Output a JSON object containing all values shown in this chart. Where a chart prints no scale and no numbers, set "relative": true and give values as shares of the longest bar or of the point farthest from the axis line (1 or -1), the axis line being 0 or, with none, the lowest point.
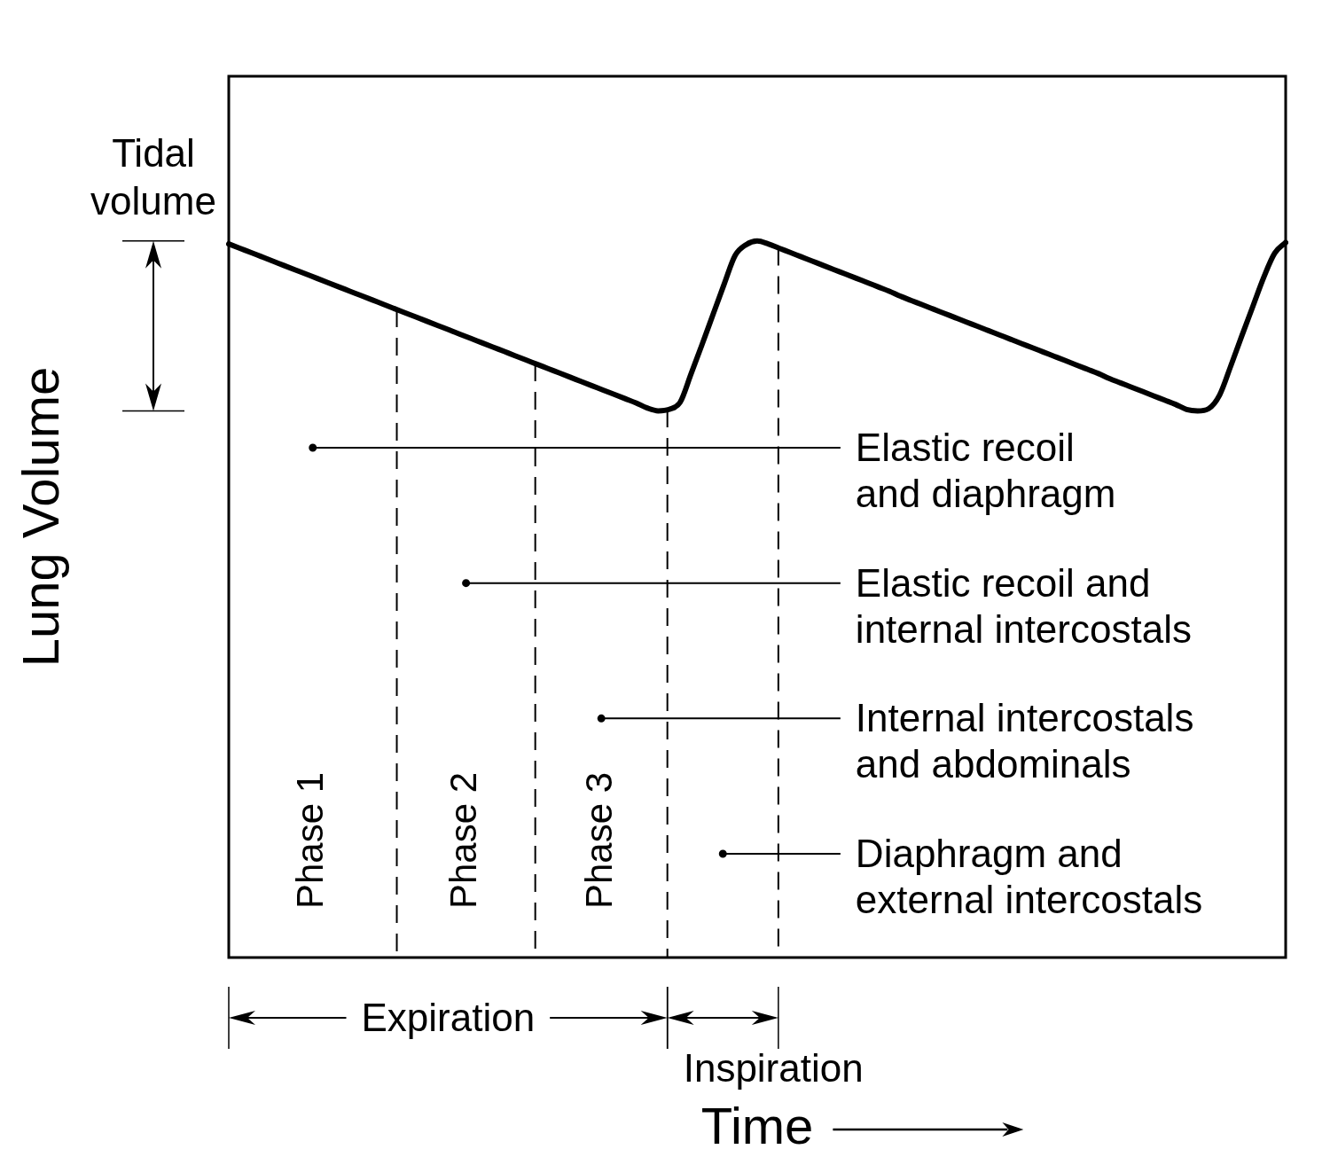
{
  "chart_data": {
    "type": "line",
    "xlabel": "Time",
    "ylabel": "Lung Volume",
    "relative": true,
    "categories": [
      null,
      null,
      null,
      null,
      null,
      null,
      null,
      null,
      null,
      null,
      null,
      null,
      null,
      null,
      null,
      null,
      null,
      null,
      null,
      null,
      null,
      null,
      null,
      null,
      null,
      null,
      null,
      null,
      null,
      null,
      null,
      null,
      null,
      null,
      null,
      null,
      null,
      null,
      null,
      null,
      null,
      null,
      null,
      null,
      null,
      null,
      null,
      null,
      null,
      null,
      null,
      null,
      null,
      null,
      null,
      null,
      null,
      null,
      null,
      null,
      null,
      null,
      null,
      null,
      null,
      null,
      null,
      null,
      null,
      null,
      null,
      null,
      null,
      null,
      null,
      null,
      null,
      null,
      null,
      null,
      null,
      null,
      null,
      null,
      null,
      null,
      null,
      null,
      null,
      null,
      null,
      null,
      null,
      null,
      null,
      null,
      null
    ],
    "values": [
      0.996,
      0.99,
      0.984,
      0.978,
      0.972,
      0.966,
      0.96,
      0.954,
      0.948,
      0.942,
      0.936,
      0.93,
      0.924,
      0.918,
      0.912,
      0.906,
      0.9,
      0.894,
      0.888,
      0.882,
      0.876,
      0.87,
      0.864,
      0.858,
      0.852,
      0.846,
      0.84,
      0.834,
      0.828,
      0.822,
      0.816,
      0.81,
      0.804,
      0.798,
      0.792,
      0.786,
      0.78,
      0.774,
      0.767,
      0.763,
      0.765,
      0.775,
      0.815,
      0.856,
      0.898,
      0.94,
      0.98,
      0.995,
      1,
      0.996,
      0.99,
      0.984,
      0.978,
      0.972,
      0.966,
      0.96,
      0.954,
      0.948,
      0.942,
      0.936,
      0.93,
      0.923,
      0.917,
      0.911,
      0.905,
      0.899,
      0.893,
      0.887,
      0.881,
      0.875,
      0.869,
      0.863,
      0.857,
      0.851,
      0.845,
      0.839,
      0.833,
      0.827,
      0.821,
      0.815,
      0.808,
      0.802,
      0.796,
      0.79,
      0.784,
      0.778,
      0.772,
      0.765,
      0.763,
      0.766,
      0.785,
      0.825,
      0.867,
      0.908,
      0.949,
      0.983,
      0.998
    ],
    "color": "#000000",
    "tick_labels": false,
    "grid": "x",
    "annotations": [
      "Tidal\nvolume",
      "Phase 1",
      "Phase 2",
      "Phase 3",
      "Elastic recoil\nand diaphragm",
      "Elastic recoil and\ninternal intercostals",
      "Internal intercostals\nand abdominals",
      "Diaphragm and\nexternal intercostals",
      "Expiration",
      "Inspiration"
    ]
  }
}
